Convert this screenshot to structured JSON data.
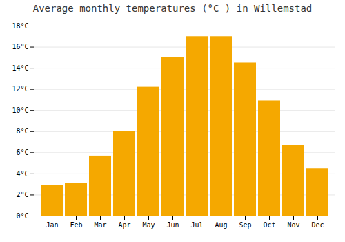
{
  "chart_data": {
    "type": "bar",
    "title": "Average monthly temperatures (°C ) in Willemstad",
    "categories": [
      "Jan",
      "Feb",
      "Mar",
      "Apr",
      "May",
      "Jun",
      "Jul",
      "Aug",
      "Sep",
      "Oct",
      "Nov",
      "Dec"
    ],
    "values": [
      2.9,
      3.1,
      5.7,
      8.0,
      12.2,
      15.0,
      17.0,
      17.0,
      14.5,
      10.9,
      6.7,
      4.5
    ],
    "color": "#F5A800",
    "ylim": [
      0,
      18
    ],
    "yticks": [
      {
        "value": 0,
        "label": "0°C"
      },
      {
        "value": 2,
        "label": "2°C"
      },
      {
        "value": 4,
        "label": "4°C"
      },
      {
        "value": 6,
        "label": "6°C"
      },
      {
        "value": 8,
        "label": "8°C"
      },
      {
        "value": 10,
        "label": "10°C"
      },
      {
        "value": 12,
        "label": "12°C"
      },
      {
        "value": 14,
        "label": "14°C"
      },
      {
        "value": 16,
        "label": "16°C"
      },
      {
        "value": 18,
        "label": "18°C"
      }
    ],
    "grid": true
  }
}
